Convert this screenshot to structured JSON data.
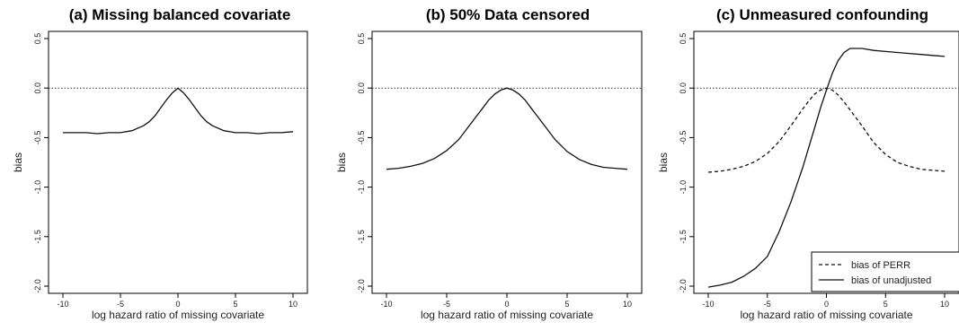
{
  "chart_data": [
    {
      "type": "line",
      "title": "(a) Missing balanced covariate",
      "xlabel": "log hazard ratio of missing covariate",
      "ylabel": "bias",
      "xlim": [
        -10,
        10
      ],
      "ylim": [
        -2.0,
        0.5
      ],
      "xticks": [
        "-10",
        "-5",
        "0",
        "5",
        "10"
      ],
      "yticks": [
        "-2.0",
        "-1.5",
        "-1.0",
        "-0.5",
        "0.0",
        "0.5"
      ],
      "reference_line": 0,
      "grid": false,
      "series": [
        {
          "style": "solid",
          "x": [
            -10,
            -9,
            -8,
            -7,
            -6,
            -5,
            -4,
            -3,
            -2.5,
            -2,
            -1.5,
            -1,
            -0.5,
            0,
            0.5,
            1,
            1.5,
            2,
            2.5,
            3,
            4,
            5,
            6,
            7,
            8,
            9,
            10
          ],
          "y": [
            -0.45,
            -0.45,
            -0.45,
            -0.46,
            -0.45,
            -0.45,
            -0.43,
            -0.38,
            -0.34,
            -0.28,
            -0.2,
            -0.12,
            -0.05,
            0.0,
            -0.05,
            -0.12,
            -0.2,
            -0.28,
            -0.34,
            -0.38,
            -0.43,
            -0.45,
            -0.45,
            -0.46,
            -0.45,
            -0.45,
            -0.44
          ]
        }
      ]
    },
    {
      "type": "line",
      "title": "(b) 50% Data censored",
      "xlabel": "log hazard ratio of missing covariate",
      "ylabel": "bias",
      "xlim": [
        -10,
        10
      ],
      "ylim": [
        -2.0,
        0.5
      ],
      "xticks": [
        "-10",
        "-5",
        "0",
        "5",
        "10"
      ],
      "yticks": [
        "-2.0",
        "-1.5",
        "-1.0",
        "-0.5",
        "0.0",
        "0.5"
      ],
      "reference_line": 0,
      "grid": false,
      "series": [
        {
          "style": "solid",
          "x": [
            -10,
            -9,
            -8,
            -7,
            -6,
            -5,
            -4,
            -3,
            -2,
            -1.5,
            -1,
            -0.5,
            0,
            0.5,
            1,
            1.5,
            2,
            3,
            4,
            5,
            6,
            7,
            8,
            9,
            10
          ],
          "y": [
            -0.82,
            -0.81,
            -0.79,
            -0.76,
            -0.71,
            -0.63,
            -0.52,
            -0.36,
            -0.2,
            -0.12,
            -0.06,
            -0.02,
            0.0,
            -0.02,
            -0.06,
            -0.12,
            -0.2,
            -0.36,
            -0.52,
            -0.64,
            -0.72,
            -0.77,
            -0.8,
            -0.81,
            -0.82
          ]
        }
      ]
    },
    {
      "type": "line",
      "title": "(c) Unmeasured confounding",
      "xlabel": "log hazard ratio of missing covariate",
      "ylabel": "bias",
      "xlim": [
        -10,
        10
      ],
      "ylim": [
        -2.0,
        0.5
      ],
      "xticks": [
        "-10",
        "-5",
        "0",
        "5",
        "10"
      ],
      "yticks": [
        "-2.0",
        "-1.5",
        "-1.0",
        "-0.5",
        "0.0",
        "0.5"
      ],
      "reference_line": 0,
      "grid": false,
      "legend": "bottom-right",
      "series": [
        {
          "name": "bias of PERR",
          "style": "dashed",
          "x": [
            -10,
            -9,
            -8,
            -7,
            -6,
            -5,
            -4,
            -3,
            -2,
            -1.5,
            -1,
            -0.5,
            0,
            0.5,
            1,
            1.5,
            2,
            3,
            4,
            5,
            6,
            7,
            8,
            9,
            10
          ],
          "y": [
            -0.85,
            -0.84,
            -0.82,
            -0.79,
            -0.74,
            -0.66,
            -0.54,
            -0.38,
            -0.21,
            -0.13,
            -0.06,
            -0.02,
            0.0,
            -0.02,
            -0.07,
            -0.14,
            -0.22,
            -0.38,
            -0.55,
            -0.67,
            -0.75,
            -0.79,
            -0.82,
            -0.83,
            -0.84
          ]
        },
        {
          "name": "bias of unadjusted",
          "style": "solid",
          "x": [
            -10,
            -9,
            -8,
            -7,
            -6,
            -5,
            -4,
            -3,
            -2,
            -1.5,
            -1,
            -0.5,
            0,
            0.5,
            1,
            1.5,
            2,
            3,
            4,
            5,
            6,
            7,
            8,
            9,
            10
          ],
          "y": [
            -2.01,
            -1.99,
            -1.96,
            -1.9,
            -1.82,
            -1.7,
            -1.45,
            -1.15,
            -0.8,
            -0.6,
            -0.4,
            -0.2,
            -0.02,
            0.15,
            0.28,
            0.36,
            0.4,
            0.4,
            0.38,
            0.37,
            0.36,
            0.35,
            0.34,
            0.33,
            0.32
          ]
        }
      ]
    }
  ]
}
